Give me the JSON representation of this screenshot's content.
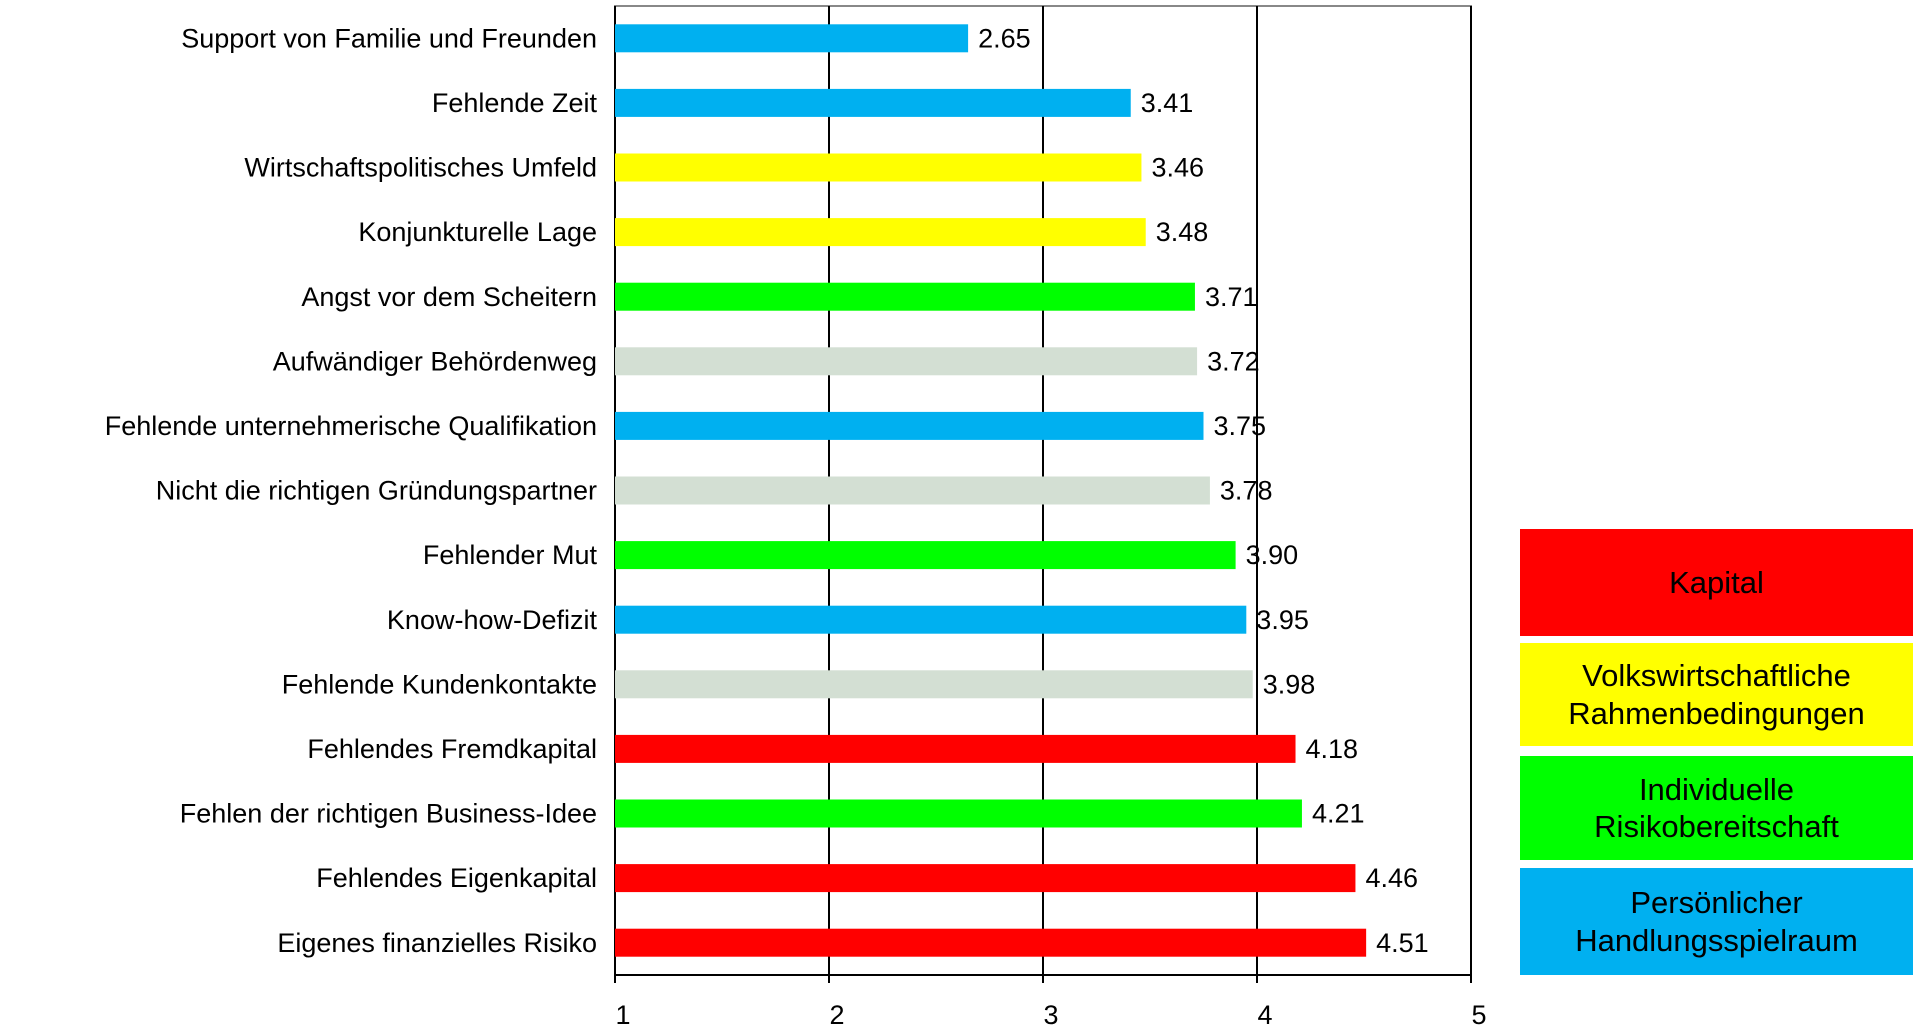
{
  "chart_data": {
    "type": "bar",
    "orientation": "horizontal",
    "categories": [
      "Support von Familie und Freunden",
      "Fehlende Zeit",
      "Wirtschaftspolitisches Umfeld",
      "Konjunkturelle Lage",
      "Angst vor dem Scheitern",
      "Aufwändiger Behördenweg",
      "Fehlende unternehmerische Qualifikation",
      "Nicht die richtigen Gründungspartner",
      "Fehlender Mut",
      "Know-how-Defizit",
      "Fehlende Kundenkontakte",
      "Fehlendes Fremdkapital",
      "Fehlen der richtigen Business-Idee",
      "Fehlendes Eigenkapital",
      "Eigenes finanzielles Risiko"
    ],
    "values": [
      2.65,
      3.41,
      3.46,
      3.48,
      3.71,
      3.72,
      3.75,
      3.78,
      3.9,
      3.95,
      3.98,
      4.18,
      4.21,
      4.46,
      4.51
    ],
    "value_labels": [
      "2.65",
      "3.41",
      "3.46",
      "3.48",
      "3.71",
      "3.72",
      "3.75",
      "3.78",
      "3.90",
      "3.95",
      "3.98",
      "4.18",
      "4.21",
      "4.46",
      "4.51"
    ],
    "colors": [
      "#00b0f0",
      "#00b0f0",
      "#ffff00",
      "#ffff00",
      "#00ff00",
      "#d3dfd3",
      "#00b0f0",
      "#d3dfd3",
      "#00ff00",
      "#00b0f0",
      "#d3dfd3",
      "#ff0000",
      "#00ff00",
      "#ff0000",
      "#ff0000"
    ],
    "xlim": [
      1,
      5
    ],
    "xticks": [
      1,
      2,
      3,
      4,
      5
    ],
    "grid": true,
    "legend": [
      {
        "name": "Kapital",
        "color": "#ff0000"
      },
      {
        "name": "Volkswirtschaftliche Rahmenbedingungen",
        "color": "#ffff00"
      },
      {
        "name": "Individuelle Risikobereitschaft",
        "color": "#00ff00"
      },
      {
        "name": "Persönlicher Handlungsspielraum",
        "color": "#00b0f0"
      }
    ]
  }
}
